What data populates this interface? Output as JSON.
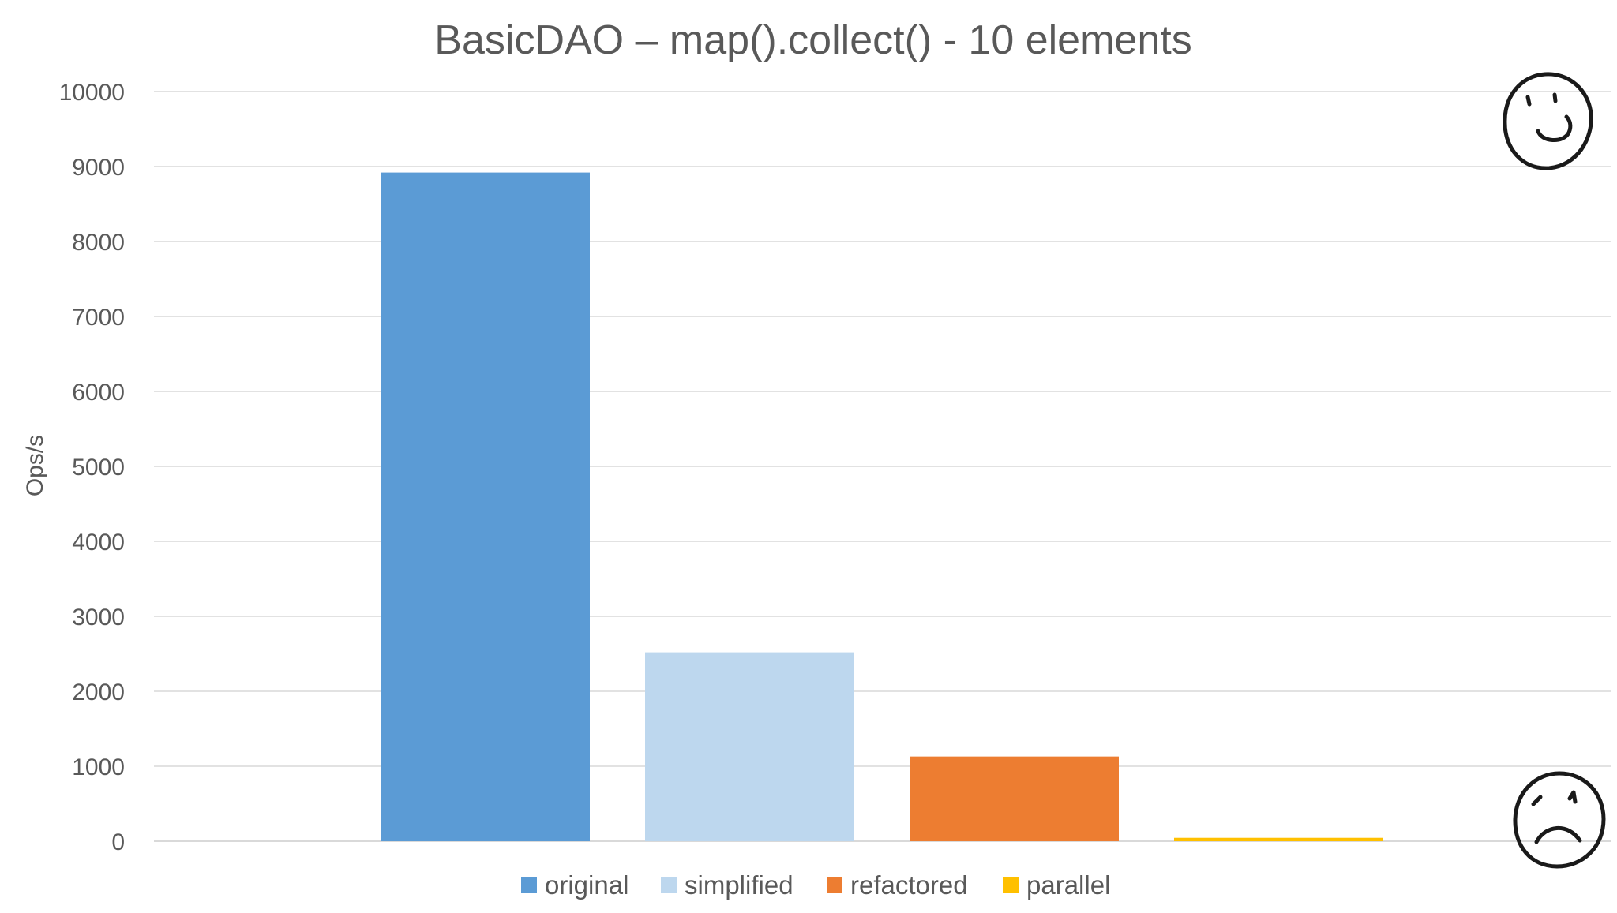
{
  "chart_data": {
    "type": "bar",
    "title": "BasicDAO – map().collect() - 10 elements",
    "ylabel": "Ops/s",
    "xlabel": "",
    "ylim": [
      0,
      10000
    ],
    "yticks": [
      "0",
      "1000",
      "2000",
      "3000",
      "4000",
      "5000",
      "6000",
      "7000",
      "8000",
      "9000",
      "10000"
    ],
    "grid": true,
    "legend_position": "bottom",
    "series": [
      {
        "name": "original",
        "value": 8920,
        "color": "#5b9bd5"
      },
      {
        "name": "simplified",
        "value": 2520,
        "color": "#bdd7ee"
      },
      {
        "name": "refactored",
        "value": 1130,
        "color": "#ed7d31"
      },
      {
        "name": "parallel",
        "value": 45,
        "color": "#ffc000"
      }
    ]
  },
  "decorations": {
    "top_right": "smiley-face-icon",
    "bottom_right": "frowning-face-icon"
  }
}
